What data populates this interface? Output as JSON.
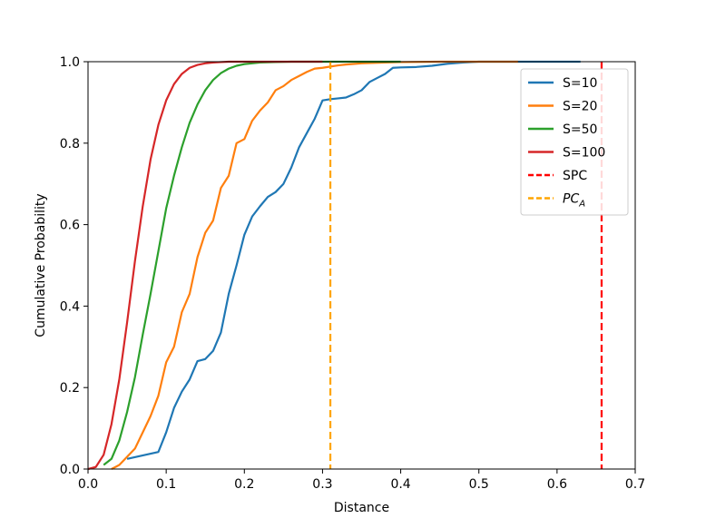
{
  "chart_data": {
    "type": "line",
    "title": "",
    "xlabel": "Distance",
    "ylabel": "Cumulative Probability",
    "xlim": [
      0.0,
      0.7
    ],
    "ylim": [
      0.0,
      1.0
    ],
    "xticks": [
      "0.0",
      "0.1",
      "0.2",
      "0.3",
      "0.4",
      "0.5",
      "0.6",
      "0.7"
    ],
    "yticks": [
      "0.0",
      "0.2",
      "0.4",
      "0.6",
      "0.8",
      "1.0"
    ],
    "grid": false,
    "legend_position": "top-right",
    "series": [
      {
        "name": "S=10",
        "color": "#1f77b4",
        "style": "solid",
        "x": [
          0.05,
          0.09,
          0.1,
          0.11,
          0.12,
          0.13,
          0.14,
          0.15,
          0.16,
          0.17,
          0.18,
          0.19,
          0.2,
          0.21,
          0.22,
          0.23,
          0.24,
          0.25,
          0.26,
          0.27,
          0.28,
          0.29,
          0.3,
          0.31,
          0.32,
          0.33,
          0.34,
          0.35,
          0.36,
          0.37,
          0.38,
          0.39,
          0.4,
          0.42,
          0.44,
          0.46,
          0.48,
          0.5,
          0.55,
          0.6,
          0.63
        ],
        "y": [
          0.025,
          0.042,
          0.09,
          0.15,
          0.19,
          0.22,
          0.265,
          0.27,
          0.29,
          0.335,
          0.43,
          0.5,
          0.575,
          0.62,
          0.645,
          0.668,
          0.68,
          0.7,
          0.74,
          0.79,
          0.825,
          0.86,
          0.905,
          0.908,
          0.91,
          0.912,
          0.92,
          0.93,
          0.95,
          0.96,
          0.97,
          0.985,
          0.986,
          0.987,
          0.99,
          0.995,
          0.998,
          1.0,
          1.0,
          1.0,
          1.0
        ]
      },
      {
        "name": "S=20",
        "color": "#ff7f0e",
        "style": "solid",
        "x": [
          0.03,
          0.04,
          0.05,
          0.06,
          0.07,
          0.08,
          0.09,
          0.1,
          0.11,
          0.12,
          0.13,
          0.14,
          0.15,
          0.16,
          0.17,
          0.18,
          0.19,
          0.2,
          0.21,
          0.22,
          0.23,
          0.24,
          0.25,
          0.26,
          0.27,
          0.28,
          0.29,
          0.3,
          0.31,
          0.32,
          0.33,
          0.35,
          0.38,
          0.4,
          0.45,
          0.5,
          0.55
        ],
        "y": [
          0.0,
          0.01,
          0.03,
          0.05,
          0.09,
          0.13,
          0.18,
          0.262,
          0.3,
          0.385,
          0.43,
          0.52,
          0.58,
          0.61,
          0.69,
          0.72,
          0.8,
          0.81,
          0.855,
          0.88,
          0.9,
          0.93,
          0.94,
          0.955,
          0.965,
          0.975,
          0.983,
          0.985,
          0.988,
          0.991,
          0.993,
          0.996,
          0.998,
          0.999,
          1.0,
          1.0,
          1.0
        ]
      },
      {
        "name": "S=50",
        "color": "#2ca02c",
        "style": "solid",
        "x": [
          0.02,
          0.03,
          0.04,
          0.05,
          0.06,
          0.07,
          0.08,
          0.09,
          0.1,
          0.11,
          0.12,
          0.13,
          0.14,
          0.15,
          0.16,
          0.17,
          0.18,
          0.19,
          0.2,
          0.21,
          0.22,
          0.24,
          0.26,
          0.3,
          0.35,
          0.4
        ],
        "y": [
          0.01,
          0.025,
          0.07,
          0.14,
          0.225,
          0.33,
          0.43,
          0.535,
          0.64,
          0.72,
          0.79,
          0.85,
          0.895,
          0.93,
          0.955,
          0.972,
          0.983,
          0.99,
          0.994,
          0.996,
          0.998,
          0.999,
          1.0,
          1.0,
          1.0,
          1.0
        ]
      },
      {
        "name": "S=100",
        "color": "#d62728",
        "style": "solid",
        "x": [
          0.0,
          0.01,
          0.02,
          0.03,
          0.04,
          0.05,
          0.06,
          0.07,
          0.08,
          0.09,
          0.1,
          0.11,
          0.12,
          0.13,
          0.14,
          0.15,
          0.16,
          0.17,
          0.18,
          0.2,
          0.25,
          0.3
        ],
        "y": [
          0.0,
          0.005,
          0.035,
          0.11,
          0.22,
          0.36,
          0.51,
          0.645,
          0.76,
          0.845,
          0.905,
          0.945,
          0.97,
          0.985,
          0.992,
          0.996,
          0.998,
          0.999,
          1.0,
          1.0,
          1.0,
          1.0
        ]
      },
      {
        "name": "SPC",
        "color": "#ff0000",
        "style": "dashed",
        "vline_x": 0.657
      },
      {
        "name": "PC_A",
        "color": "#ffa500",
        "style": "dashed",
        "vline_x": 0.31
      }
    ]
  }
}
